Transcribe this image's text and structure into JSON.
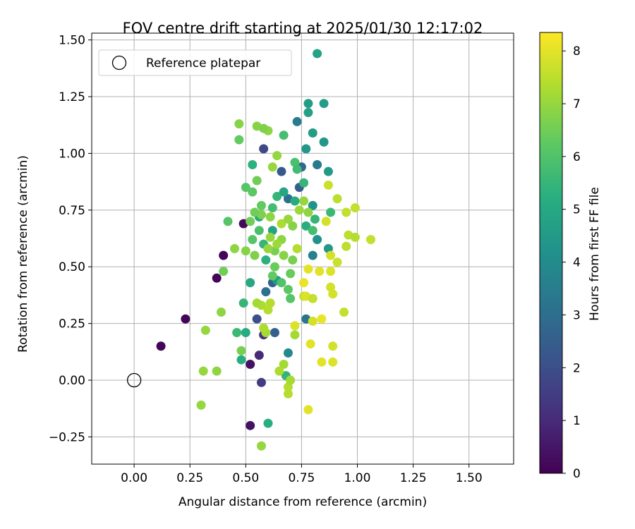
{
  "chart_data": {
    "type": "scatter",
    "title": "FOV centre drift starting at 2025/01/30 12:17:02",
    "xlabel": "Angular distance from reference (arcmin)",
    "ylabel": "Rotation from reference (arcmin)",
    "xlim": [
      -0.19,
      1.7
    ],
    "ylim": [
      -0.37,
      1.53
    ],
    "xticks": [
      "0.00",
      "0.25",
      "0.50",
      "0.75",
      "1.00",
      "1.25",
      "1.50"
    ],
    "yticks": [
      "−0.25",
      "0.00",
      "0.25",
      "0.50",
      "0.75",
      "1.00",
      "1.25",
      "1.50"
    ],
    "grid": true,
    "legend": {
      "position": "top-left",
      "label": "Reference platepar"
    },
    "reference_point": {
      "x": 0.0,
      "y": 0.0
    },
    "colorbar": {
      "label": "Hours from first FF file",
      "min": 0,
      "max": 8.35,
      "ticks": [
        "0",
        "1",
        "2",
        "3",
        "4",
        "5",
        "6",
        "7",
        "8"
      ],
      "colormap": "viridis"
    },
    "points": [
      {
        "x": 0.12,
        "y": 0.15,
        "h": 0.1
      },
      {
        "x": 0.23,
        "y": 0.27,
        "h": 0.1
      },
      {
        "x": 0.37,
        "y": 0.45,
        "h": 0.1
      },
      {
        "x": 0.4,
        "y": 0.55,
        "h": 0.1
      },
      {
        "x": 0.49,
        "y": 0.69,
        "h": 0.2
      },
      {
        "x": 0.52,
        "y": 0.07,
        "h": 0.4
      },
      {
        "x": 0.52,
        "y": -0.2,
        "h": 0.4
      },
      {
        "x": 0.56,
        "y": 0.11,
        "h": 1.0
      },
      {
        "x": 0.57,
        "y": -0.01,
        "h": 1.5
      },
      {
        "x": 0.58,
        "y": 1.02,
        "h": 1.8
      },
      {
        "x": 0.55,
        "y": 0.27,
        "h": 2.0
      },
      {
        "x": 0.63,
        "y": 0.21,
        "h": 2.5
      },
      {
        "x": 0.58,
        "y": 0.2,
        "h": 1.2
      },
      {
        "x": 0.74,
        "y": 0.85,
        "h": 2.5
      },
      {
        "x": 0.75,
        "y": 0.94,
        "h": 2.8
      },
      {
        "x": 0.73,
        "y": 1.14,
        "h": 3.5
      },
      {
        "x": 0.77,
        "y": 0.27,
        "h": 3.2
      },
      {
        "x": 0.66,
        "y": 0.92,
        "h": 2.3
      },
      {
        "x": 0.69,
        "y": 0.8,
        "h": 3.0
      },
      {
        "x": 0.62,
        "y": 0.43,
        "h": 2.6
      },
      {
        "x": 0.59,
        "y": 0.39,
        "h": 3.1
      },
      {
        "x": 0.82,
        "y": 0.95,
        "h": 3.4
      },
      {
        "x": 0.8,
        "y": 0.55,
        "h": 3.6
      },
      {
        "x": 0.69,
        "y": 0.12,
        "h": 3.9
      },
      {
        "x": 0.78,
        "y": 1.22,
        "h": 4.6
      },
      {
        "x": 0.85,
        "y": 1.22,
        "h": 4.6
      },
      {
        "x": 0.82,
        "y": 1.44,
        "h": 4.8
      },
      {
        "x": 0.78,
        "y": 1.18,
        "h": 4.7
      },
      {
        "x": 0.8,
        "y": 1.09,
        "h": 4.6
      },
      {
        "x": 0.87,
        "y": 0.92,
        "h": 4.5
      },
      {
        "x": 0.85,
        "y": 1.05,
        "h": 4.4
      },
      {
        "x": 0.77,
        "y": 1.02,
        "h": 4.4
      },
      {
        "x": 0.8,
        "y": 0.77,
        "h": 4.2
      },
      {
        "x": 0.82,
        "y": 0.62,
        "h": 4.2
      },
      {
        "x": 0.87,
        "y": 0.58,
        "h": 4.4
      },
      {
        "x": 0.6,
        "y": -0.19,
        "h": 5.2
      },
      {
        "x": 0.48,
        "y": 0.09,
        "h": 5.2
      },
      {
        "x": 0.68,
        "y": 0.02,
        "h": 5.4
      },
      {
        "x": 0.53,
        "y": 0.95,
        "h": 5.3
      },
      {
        "x": 0.56,
        "y": 0.72,
        "h": 5.0
      },
      {
        "x": 0.62,
        "y": 0.66,
        "h": 4.8
      },
      {
        "x": 0.64,
        "y": 0.44,
        "h": 4.5
      },
      {
        "x": 0.52,
        "y": 0.43,
        "h": 5.0
      },
      {
        "x": 0.5,
        "y": 0.21,
        "h": 5.1
      },
      {
        "x": 0.46,
        "y": 0.21,
        "h": 5.6
      },
      {
        "x": 0.49,
        "y": 0.34,
        "h": 5.5
      },
      {
        "x": 0.88,
        "y": 0.74,
        "h": 5.6
      },
      {
        "x": 0.76,
        "y": 0.87,
        "h": 5.5
      },
      {
        "x": 0.72,
        "y": 0.96,
        "h": 5.9
      },
      {
        "x": 0.73,
        "y": 0.93,
        "h": 5.7
      },
      {
        "x": 0.67,
        "y": 1.08,
        "h": 5.8
      },
      {
        "x": 0.47,
        "y": 1.06,
        "h": 6.3
      },
      {
        "x": 0.42,
        "y": 0.7,
        "h": 6.1
      },
      {
        "x": 0.5,
        "y": 0.85,
        "h": 6.1
      },
      {
        "x": 0.53,
        "y": 0.83,
        "h": 6.2
      },
      {
        "x": 0.55,
        "y": 0.88,
        "h": 6.5
      },
      {
        "x": 0.57,
        "y": 0.77,
        "h": 6.3
      },
      {
        "x": 0.4,
        "y": 0.48,
        "h": 6.5
      },
      {
        "x": 0.48,
        "y": 0.13,
        "h": 6.6
      },
      {
        "x": 0.47,
        "y": 1.13,
        "h": 6.8
      },
      {
        "x": 0.55,
        "y": 1.12,
        "h": 6.8
      },
      {
        "x": 0.6,
        "y": 1.1,
        "h": 6.9
      },
      {
        "x": 0.58,
        "y": 1.11,
        "h": 6.7
      },
      {
        "x": 0.57,
        "y": -0.29,
        "h": 7.0
      },
      {
        "x": 0.3,
        "y": -0.11,
        "h": 7.0
      },
      {
        "x": 0.31,
        "y": 0.04,
        "h": 7.0
      },
      {
        "x": 0.37,
        "y": 0.04,
        "h": 6.9
      },
      {
        "x": 0.39,
        "y": 0.3,
        "h": 6.9
      },
      {
        "x": 0.32,
        "y": 0.22,
        "h": 7.0
      },
      {
        "x": 0.45,
        "y": 0.58,
        "h": 6.9
      },
      {
        "x": 0.5,
        "y": 0.57,
        "h": 6.8
      },
      {
        "x": 0.54,
        "y": 0.55,
        "h": 6.7
      },
      {
        "x": 0.62,
        "y": 0.94,
        "h": 7.0
      },
      {
        "x": 0.64,
        "y": 0.99,
        "h": 7.0
      },
      {
        "x": 0.67,
        "y": 0.07,
        "h": 7.2
      },
      {
        "x": 0.65,
        "y": 0.04,
        "h": 7.3
      },
      {
        "x": 0.69,
        "y": -0.03,
        "h": 7.4
      },
      {
        "x": 0.69,
        "y": -0.06,
        "h": 7.4
      },
      {
        "x": 0.7,
        "y": 0.0,
        "h": 7.2
      },
      {
        "x": 0.72,
        "y": 0.2,
        "h": 7.2
      },
      {
        "x": 0.73,
        "y": 0.58,
        "h": 7.4
      },
      {
        "x": 0.76,
        "y": 0.37,
        "h": 7.6
      },
      {
        "x": 0.77,
        "y": 0.37,
        "h": 7.9
      },
      {
        "x": 0.8,
        "y": 0.36,
        "h": 7.6
      },
      {
        "x": 0.78,
        "y": -0.13,
        "h": 8.0
      },
      {
        "x": 0.84,
        "y": 0.08,
        "h": 8.0
      },
      {
        "x": 0.89,
        "y": 0.08,
        "h": 7.9
      },
      {
        "x": 0.89,
        "y": 0.15,
        "h": 7.8
      },
      {
        "x": 0.79,
        "y": 0.16,
        "h": 8.0
      },
      {
        "x": 0.76,
        "y": 0.43,
        "h": 8.1
      },
      {
        "x": 0.78,
        "y": 0.49,
        "h": 8.0
      },
      {
        "x": 0.83,
        "y": 0.48,
        "h": 8.0
      },
      {
        "x": 0.88,
        "y": 0.48,
        "h": 7.9
      },
      {
        "x": 0.88,
        "y": 0.55,
        "h": 7.8
      },
      {
        "x": 0.88,
        "y": 0.41,
        "h": 7.8
      },
      {
        "x": 0.89,
        "y": 0.38,
        "h": 7.8
      },
      {
        "x": 0.91,
        "y": 0.52,
        "h": 7.7
      },
      {
        "x": 0.94,
        "y": 0.3,
        "h": 7.6
      },
      {
        "x": 0.95,
        "y": 0.59,
        "h": 7.5
      },
      {
        "x": 0.96,
        "y": 0.64,
        "h": 7.5
      },
      {
        "x": 0.99,
        "y": 0.63,
        "h": 7.4
      },
      {
        "x": 0.99,
        "y": 0.76,
        "h": 7.6
      },
      {
        "x": 0.95,
        "y": 0.74,
        "h": 7.6
      },
      {
        "x": 0.91,
        "y": 0.8,
        "h": 7.5
      },
      {
        "x": 0.86,
        "y": 0.7,
        "h": 7.8
      },
      {
        "x": 0.87,
        "y": 0.86,
        "h": 7.7
      },
      {
        "x": 1.06,
        "y": 0.62,
        "h": 7.6
      },
      {
        "x": 0.84,
        "y": 0.27,
        "h": 8.1
      },
      {
        "x": 0.8,
        "y": 0.26,
        "h": 7.8
      },
      {
        "x": 0.72,
        "y": 0.24,
        "h": 7.9
      },
      {
        "x": 0.61,
        "y": 0.34,
        "h": 7.4
      },
      {
        "x": 0.57,
        "y": 0.33,
        "h": 7.3
      },
      {
        "x": 0.59,
        "y": 0.21,
        "h": 7.2
      },
      {
        "x": 0.58,
        "y": 0.23,
        "h": 7.3
      },
      {
        "x": 0.6,
        "y": 0.31,
        "h": 7.4
      },
      {
        "x": 0.55,
        "y": 0.34,
        "h": 7.2
      },
      {
        "x": 0.61,
        "y": 0.63,
        "h": 7.0
      },
      {
        "x": 0.66,
        "y": 0.69,
        "h": 7.3
      },
      {
        "x": 0.69,
        "y": 0.71,
        "h": 7.0
      },
      {
        "x": 0.71,
        "y": 0.68,
        "h": 6.8
      },
      {
        "x": 0.74,
        "y": 0.75,
        "h": 7.1
      },
      {
        "x": 0.76,
        "y": 0.79,
        "h": 7.0
      },
      {
        "x": 0.78,
        "y": 0.74,
        "h": 6.9
      },
      {
        "x": 0.66,
        "y": 0.62,
        "h": 6.9
      },
      {
        "x": 0.63,
        "y": 0.57,
        "h": 6.6
      },
      {
        "x": 0.63,
        "y": 0.5,
        "h": 6.4
      },
      {
        "x": 0.62,
        "y": 0.46,
        "h": 6.3
      },
      {
        "x": 0.66,
        "y": 0.43,
        "h": 6.0
      },
      {
        "x": 0.69,
        "y": 0.4,
        "h": 6.2
      },
      {
        "x": 0.7,
        "y": 0.47,
        "h": 6.4
      },
      {
        "x": 0.71,
        "y": 0.53,
        "h": 6.6
      },
      {
        "x": 0.7,
        "y": 0.36,
        "h": 6.1
      },
      {
        "x": 0.52,
        "y": 0.7,
        "h": 6.5
      },
      {
        "x": 0.53,
        "y": 0.62,
        "h": 6.1
      },
      {
        "x": 0.56,
        "y": 0.66,
        "h": 5.9
      },
      {
        "x": 0.58,
        "y": 0.6,
        "h": 5.5
      },
      {
        "x": 0.59,
        "y": 0.53,
        "h": 5.3
      },
      {
        "x": 0.62,
        "y": 0.76,
        "h": 5.8
      },
      {
        "x": 0.64,
        "y": 0.81,
        "h": 5.5
      },
      {
        "x": 0.67,
        "y": 0.83,
        "h": 4.9
      },
      {
        "x": 0.72,
        "y": 0.79,
        "h": 5.1
      },
      {
        "x": 0.77,
        "y": 0.68,
        "h": 5.2
      },
      {
        "x": 0.8,
        "y": 0.66,
        "h": 5.8
      },
      {
        "x": 0.81,
        "y": 0.71,
        "h": 5.5
      },
      {
        "x": 0.61,
        "y": 0.72,
        "h": 6.9
      },
      {
        "x": 0.57,
        "y": 0.73,
        "h": 6.7
      },
      {
        "x": 0.54,
        "y": 0.74,
        "h": 6.5
      },
      {
        "x": 0.67,
        "y": 0.55,
        "h": 6.8
      },
      {
        "x": 0.64,
        "y": 0.6,
        "h": 7.1
      },
      {
        "x": 0.6,
        "y": 0.58,
        "h": 7.0
      }
    ]
  }
}
